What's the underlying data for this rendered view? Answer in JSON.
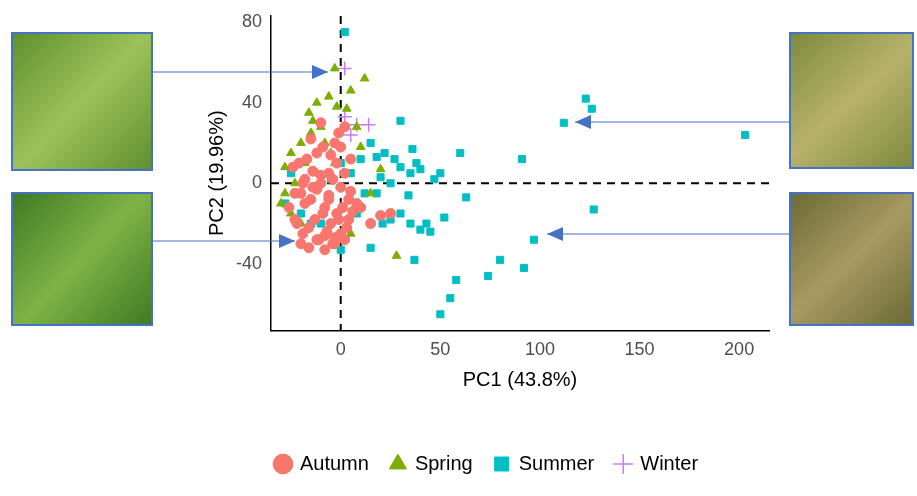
{
  "chart_data": {
    "type": "scatter",
    "x_label": "PC1 (43.8%)",
    "y_label": "PC2 (19.96%)",
    "xlim": [
      -35,
      215
    ],
    "ylim": [
      -73,
      83
    ],
    "xticks": [
      0,
      50,
      100,
      150,
      200
    ],
    "yticks": [
      -40,
      0,
      40,
      80
    ],
    "hlines": [
      0
    ],
    "vlines": [
      0
    ],
    "grid": false,
    "legend": "bottom",
    "series": [
      {
        "name": "Autumn",
        "color": "#F8766D",
        "marker": "circle",
        "x": [
          -20,
          -18,
          -15,
          -12,
          -10,
          -8,
          -6,
          -4,
          -2,
          0,
          2,
          4,
          -22,
          -19,
          -16,
          -13,
          -11,
          -9,
          -7,
          -5,
          -3,
          -1,
          1,
          3,
          5,
          -24,
          -21,
          -17,
          -14,
          -12,
          -9,
          -6,
          -3,
          -1,
          2,
          -20,
          -16,
          -12,
          -8,
          -4,
          0,
          4,
          8,
          -26,
          -23,
          -18,
          -14,
          -10,
          -6,
          -2,
          6,
          10,
          15,
          20,
          -15,
          -10,
          -5,
          0,
          5,
          25,
          -8,
          -3,
          -19,
          -23,
          2
        ],
        "y": [
          -5,
          -10,
          -8,
          -3,
          0,
          -12,
          -6,
          2,
          -15,
          -2,
          5,
          -8,
          -20,
          -25,
          -22,
          -18,
          -28,
          -15,
          -24,
          -20,
          -27,
          -18,
          -12,
          -22,
          -4,
          8,
          10,
          12,
          6,
          15,
          18,
          5,
          20,
          25,
          28,
          -30,
          -32,
          -28,
          -26,
          -30,
          -25,
          -18,
          -10,
          -12,
          -5,
          2,
          -2,
          4,
          -8,
          10,
          -14,
          -12,
          -20,
          -16,
          22,
          30,
          14,
          18,
          12,
          -15,
          -33,
          -30,
          0,
          -18,
          -28
        ]
      },
      {
        "name": "Spring",
        "color": "#7CAE00",
        "marker": "triangle",
        "x": [
          -3,
          12,
          5,
          -12,
          -6,
          -2,
          -16,
          -25,
          -28,
          -20,
          -15,
          -10,
          -8,
          -5,
          -18,
          -23,
          -30,
          -25,
          3,
          8,
          10,
          20,
          28,
          5,
          -20,
          -12,
          -3,
          15,
          -28,
          -14
        ],
        "y": [
          57,
          52,
          46,
          40,
          43,
          38,
          35,
          15,
          8,
          20,
          25,
          28,
          20,
          15,
          10,
          0,
          -10,
          -15,
          37,
          28,
          18,
          7,
          -36,
          -25,
          -20,
          5,
          10,
          -5,
          -5,
          31
        ]
      },
      {
        "name": "Summer",
        "color": "#00BFC4",
        "marker": "square",
        "x": [
          2,
          123,
          126,
          112,
          203,
          91,
          127,
          97,
          92,
          80,
          74,
          58,
          55,
          50,
          60,
          63,
          52,
          45,
          40,
          37,
          50,
          47,
          40,
          35,
          30,
          27,
          22,
          18,
          15,
          30,
          38,
          36,
          34,
          30,
          21,
          25,
          15,
          0,
          -10,
          -20,
          -25,
          -28,
          -5,
          5,
          10,
          12,
          8,
          18,
          20,
          25,
          35,
          43,
          0,
          -15
        ],
        "y": [
          75,
          42,
          37,
          30,
          24,
          12,
          -13,
          -28,
          -42,
          -38,
          -46,
          -48,
          -57,
          -65,
          15,
          -7,
          -17,
          -24,
          -23,
          -38,
          5,
          2,
          7,
          5,
          8,
          12,
          15,
          13,
          20,
          31,
          10,
          17,
          -6,
          -15,
          -20,
          -18,
          -32,
          -33,
          -20,
          -15,
          5,
          -10,
          2,
          5,
          12,
          -5,
          -15,
          -5,
          3,
          0,
          -20,
          -20,
          10,
          -20
        ]
      },
      {
        "name": "Winter",
        "color": "#C77CFF",
        "marker": "cross",
        "x": [
          2,
          2,
          8,
          14,
          5
        ],
        "y": [
          57,
          33,
          29,
          29,
          24
        ]
      }
    ]
  }
}
